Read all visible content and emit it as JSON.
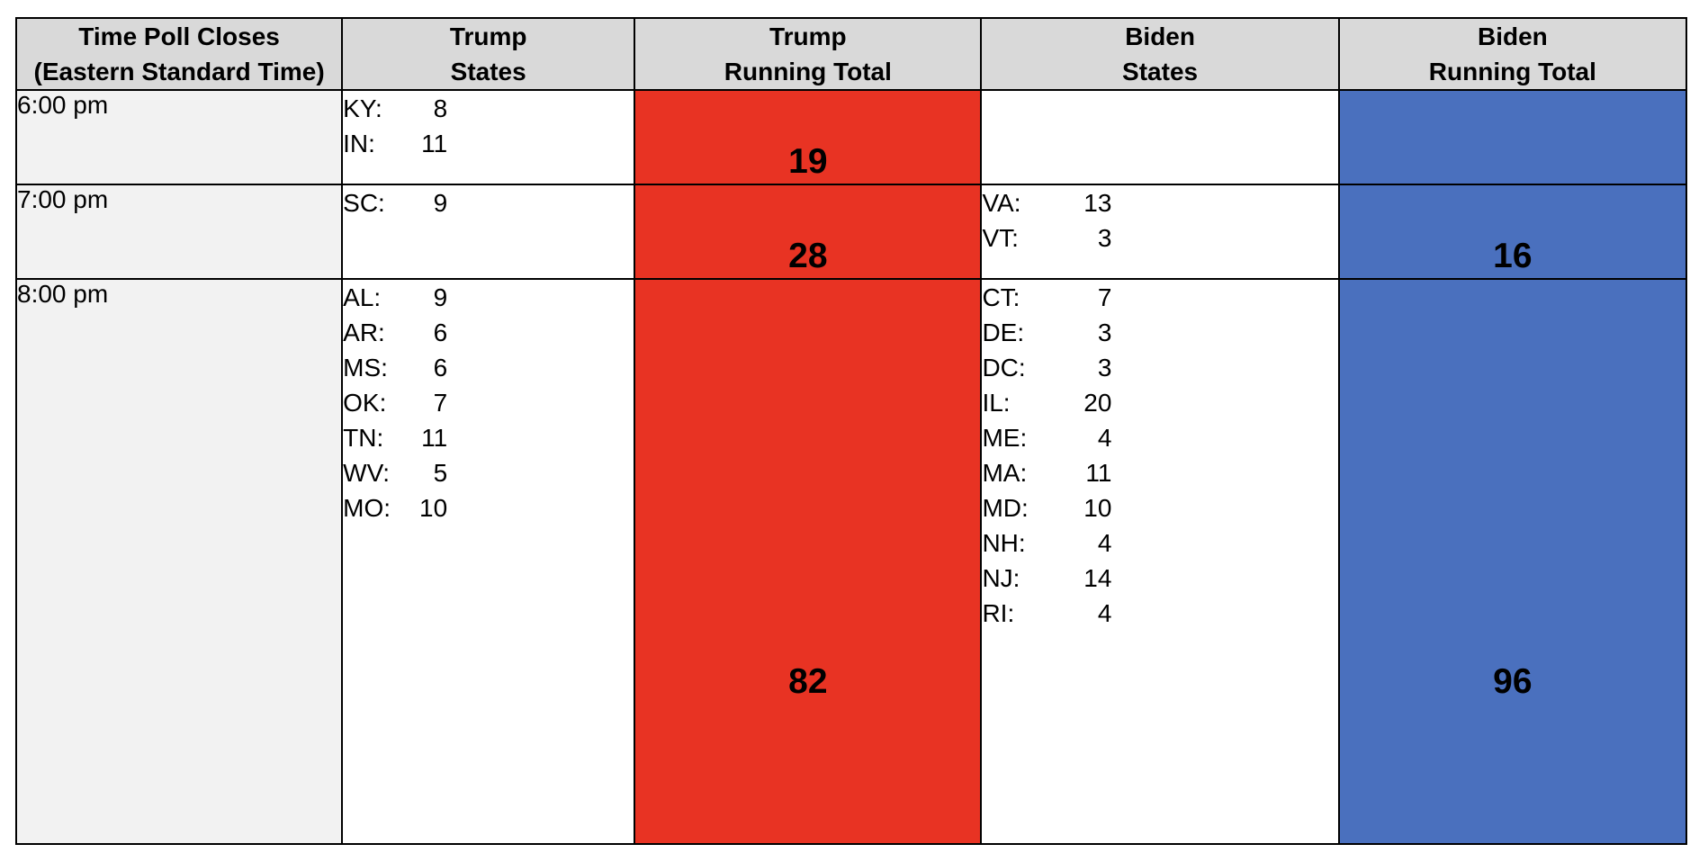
{
  "headers": {
    "time": [
      "Time Poll Closes",
      "(Eastern Standard Time)"
    ],
    "trump_states": [
      "Trump",
      "States"
    ],
    "trump_total": [
      "Trump",
      "Running Total"
    ],
    "biden_states": [
      "Biden",
      "States"
    ],
    "biden_total": [
      "Biden",
      "Running Total"
    ]
  },
  "colors": {
    "trump": "#e83323",
    "biden": "#4a70be",
    "header_bg": "#d9d9d9",
    "time_bg": "#f2f2f2"
  },
  "rows": [
    {
      "time": "6:00 pm",
      "trump_states": [
        {
          "abbr": "KY:",
          "ev": "8"
        },
        {
          "abbr": "IN:",
          "ev": "11"
        }
      ],
      "trump_total": "19",
      "biden_states": [],
      "biden_total": ""
    },
    {
      "time": "7:00 pm",
      "trump_states": [
        {
          "abbr": "SC:",
          "ev": "9"
        }
      ],
      "trump_total": "28",
      "biden_states": [
        {
          "abbr": "VA:",
          "ev": "13"
        },
        {
          "abbr": "VT:",
          "ev": "3"
        }
      ],
      "biden_total": "16"
    },
    {
      "time": "8:00 pm",
      "trump_states": [
        {
          "abbr": "AL:",
          "ev": "9"
        },
        {
          "abbr": "AR:",
          "ev": "6"
        },
        {
          "abbr": "MS:",
          "ev": "6"
        },
        {
          "abbr": "OK:",
          "ev": "7"
        },
        {
          "abbr": "TN:",
          "ev": "11"
        },
        {
          "abbr": "WV:",
          "ev": "5"
        },
        {
          "abbr": "MO:",
          "ev": "10"
        }
      ],
      "trump_total": "82",
      "biden_states": [
        {
          "abbr": "CT:",
          "ev": "7"
        },
        {
          "abbr": "DE:",
          "ev": "3"
        },
        {
          "abbr": "DC:",
          "ev": "3"
        },
        {
          "abbr": "IL:",
          "ev": "20"
        },
        {
          "abbr": "ME:",
          "ev": "4"
        },
        {
          "abbr": "MA:",
          "ev": "11"
        },
        {
          "abbr": "MD:",
          "ev": "10"
        },
        {
          "abbr": "NH:",
          "ev": "4"
        },
        {
          "abbr": "NJ:",
          "ev": "14"
        },
        {
          "abbr": "RI:",
          "ev": "4"
        }
      ],
      "biden_total": "96"
    }
  ]
}
